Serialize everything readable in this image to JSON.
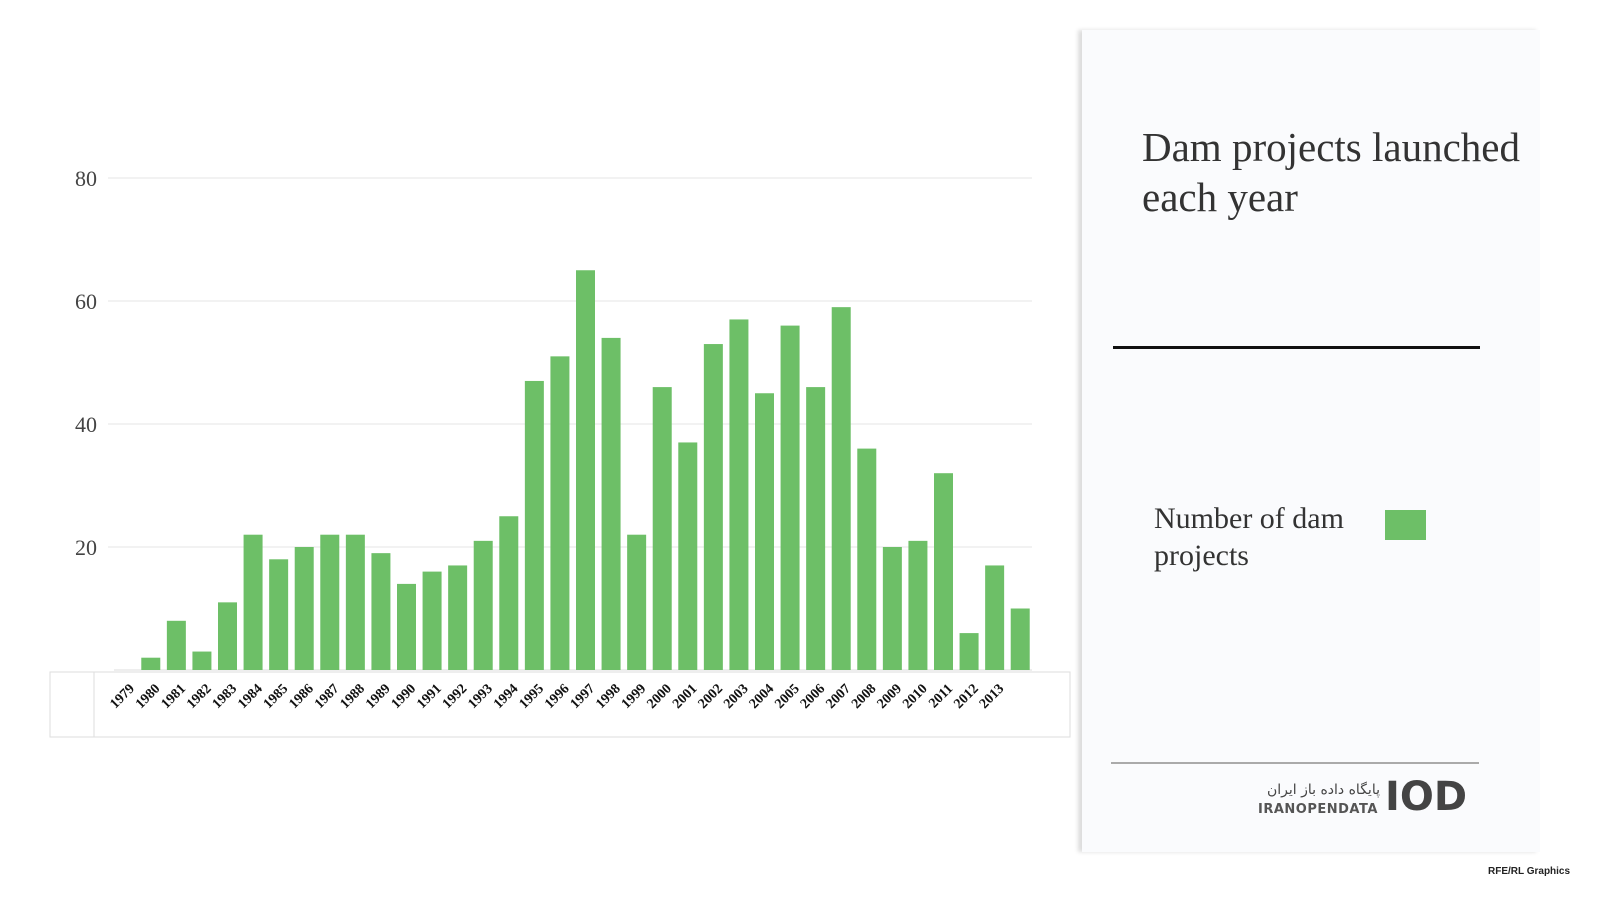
{
  "chart_data": {
    "type": "bar",
    "title": "Dam projects launched each year",
    "categories": [
      "1979",
      "1980",
      "1981",
      "1982",
      "1983",
      "1984",
      "1985",
      "1986",
      "1987",
      "1988",
      "1989",
      "1990",
      "1991",
      "1992",
      "1993",
      "1994",
      "1995",
      "1996",
      "1997",
      "1998",
      "1999",
      "2000",
      "2001",
      "2002",
      "2003",
      "2004",
      "2005",
      "2006",
      "2007",
      "2008",
      "2009",
      "2010",
      "2011",
      "2012",
      "2013"
    ],
    "series": [
      {
        "name": "Number of dam projects",
        "color": "#6dbf67",
        "values": [
          2,
          8,
          3,
          11,
          22,
          18,
          20,
          22,
          22,
          19,
          14,
          16,
          17,
          21,
          25,
          47,
          51,
          65,
          54,
          22,
          46,
          37,
          53,
          57,
          45,
          56,
          46,
          59,
          36,
          20,
          21,
          32,
          6,
          17,
          10
        ]
      }
    ],
    "ylim": [
      0,
      80
    ],
    "yticks": [
      20,
      40,
      60,
      80
    ],
    "grid": true
  },
  "logo": {
    "persian": "پایگاه داده باز ایران",
    "name": "IRANOPENDATA",
    "mark": "IOD"
  },
  "credit": "RFE/RL Graphics"
}
